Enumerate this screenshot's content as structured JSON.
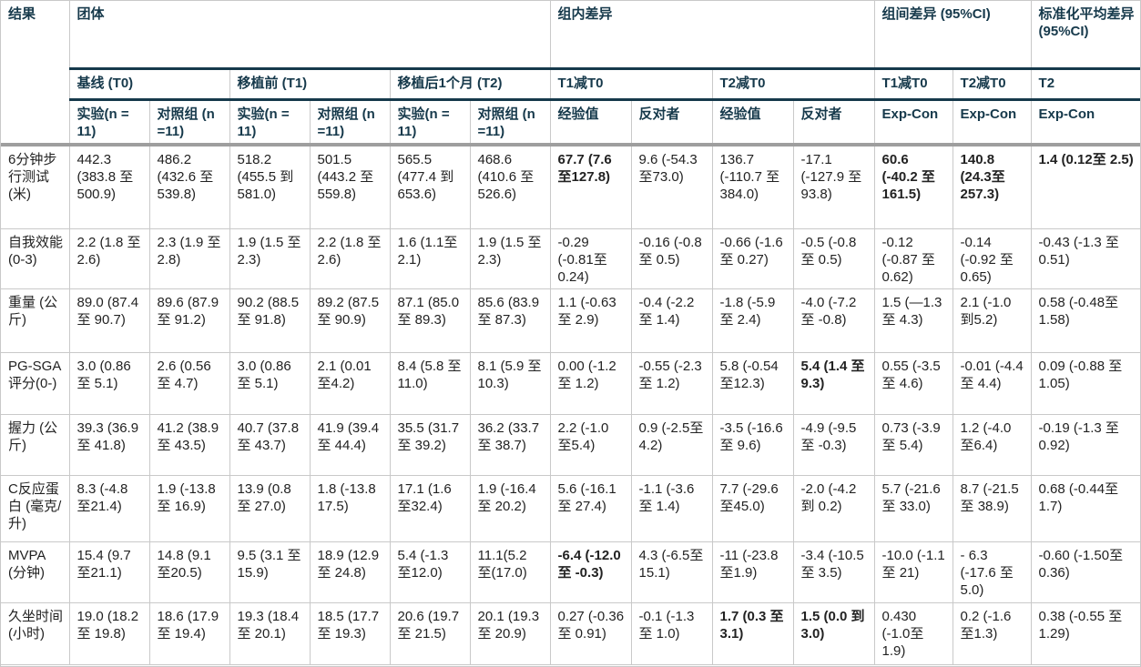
{
  "colors": {
    "header_text": "#16394b",
    "dark_rule": "#16394b",
    "gray_rule": "#9e9e9e",
    "cell_border": "#c9c9c9",
    "body_text": "#222222"
  },
  "header": {
    "corner": "结果",
    "row1": [
      {
        "label": "团体",
        "colspan": 6
      },
      {
        "label": "组内差异",
        "colspan": 4
      },
      {
        "label": "组间差异 (95%CI)",
        "colspan": 2
      },
      {
        "label": "标准化平均差异 (95%CI)",
        "colspan": 1
      }
    ],
    "row2": [
      {
        "label": "基线 (T0)",
        "colspan": 2
      },
      {
        "label": "移植前 (T1)",
        "colspan": 2
      },
      {
        "label": "移植后1个月 (T2)",
        "colspan": 2
      },
      {
        "label": "T1减T0",
        "colspan": 2
      },
      {
        "label": "T2减T0",
        "colspan": 2
      },
      {
        "label": "T1减T0",
        "colspan": 1
      },
      {
        "label": "T2减T0",
        "colspan": 1
      },
      {
        "label": "T2",
        "colspan": 1
      }
    ],
    "row3": [
      "实验(n = 11)",
      "对照组 (n =11)",
      "实验(n = 11)",
      "对照组 (n =11)",
      "实验(n = 11)",
      "对照组 (n =11)",
      "经验值",
      "反对者",
      "经验值",
      "反对者",
      "Exp-Con",
      "Exp-Con",
      "Exp-Con"
    ]
  },
  "rows": [
    {
      "outcome": "6分钟步行测试 (米)",
      "cells": [
        {
          "t": "442.3 (383.8 至 500.9)"
        },
        {
          "t": "486.2 (432.6 至 539.8)"
        },
        {
          "t": "518.2 (455.5 到 581.0)"
        },
        {
          "t": "501.5 (443.2 至 559.8)"
        },
        {
          "t": "565.5 (477.4 到 653.6)"
        },
        {
          "t": "468.6 (410.6 至 526.6)"
        },
        {
          "t": "67.7 (7.6 至127.8)",
          "b": true
        },
        {
          "t": "9.6 (-54.3 至73.0)"
        },
        {
          "t": "136.7 (-110.7 至 384.0)"
        },
        {
          "t": "-17.1 (-127.9 至93.8)"
        },
        {
          "t": "60.6 (-40.2 至161.5)",
          "b": true
        },
        {
          "t": "140.8 (24.3至 257.3)",
          "b": true
        },
        {
          "t": "1.4 (0.12至 2.5)",
          "b": true
        }
      ]
    },
    {
      "outcome": "自我效能 (0-3)",
      "cells": [
        {
          "t": "2.2 (1.8 至2.6)"
        },
        {
          "t": "2.3 (1.9 至2.8)"
        },
        {
          "t": "1.9 (1.5 至2.3)"
        },
        {
          "t": "2.2 (1.8 至2.6)"
        },
        {
          "t": "1.6 (1.1至 2.1)"
        },
        {
          "t": "1.9 (1.5 至2.3)"
        },
        {
          "t": "-0.29 (-0.81至 0.24)"
        },
        {
          "t": "-0.16 (-0.8至 0.5)"
        },
        {
          "t": "-0.66 (-1.6至 0.27)"
        },
        {
          "t": "-0.5 (-0.8 至 0.5)"
        },
        {
          "t": "-0.12 (-0.87 至0.62)"
        },
        {
          "t": "-0.14 (-0.92 至0.65)"
        },
        {
          "t": "-0.43 (-1.3 至0.51)"
        }
      ]
    },
    {
      "outcome": "重量 (公斤)",
      "cells": [
        {
          "t": "89.0 (87.4 至 90.7)"
        },
        {
          "t": "89.6 (87.9至 91.2)"
        },
        {
          "t": "90.2 (88.5至 91.8)"
        },
        {
          "t": "89.2 (87.5至 90.9)"
        },
        {
          "t": "87.1 (85.0 至 89.3)"
        },
        {
          "t": "85.6 (83.9至 87.3)"
        },
        {
          "t": "1.1 (-0.63至 2.9)"
        },
        {
          "t": "-0.4 (-2.2 至 1.4)"
        },
        {
          "t": "-1.8 (-5.9至 2.4)"
        },
        {
          "t": "-4.0 (-7.2至 -0.8)"
        },
        {
          "t": "1.5 (—1.3至 4.3)"
        },
        {
          "t": "2.1 (-1.0 到5.2)"
        },
        {
          "t": "0.58 (-0.48至 1.58)"
        }
      ]
    },
    {
      "outcome": "PG-SGA评分(0-)",
      "cells": [
        {
          "t": "3.0 (0.86至 5.1)"
        },
        {
          "t": "2.6 (0.56至 4.7)"
        },
        {
          "t": "3.0 (0.86至 5.1)"
        },
        {
          "t": "2.1 (0.01 至4.2)"
        },
        {
          "t": "8.4 (5.8 至11.0)"
        },
        {
          "t": "8.1 (5.9 至10.3)"
        },
        {
          "t": "0.00 (-1.2 至 1.2)"
        },
        {
          "t": "-0.55 (-2.3至 1.2)"
        },
        {
          "t": "5.8 (-0.54 至12.3)"
        },
        {
          "t": "5.4 (1.4 至9.3)",
          "b": true
        },
        {
          "t": "0.55 (-3.5至 4.6)"
        },
        {
          "t": "-0.01 (-4.4 至 4.4)"
        },
        {
          "t": "0.09 (-0.88 至 1.05)"
        }
      ]
    },
    {
      "outcome": "握力 (公斤)",
      "cells": [
        {
          "t": "39.3 (36.9至 41.8)"
        },
        {
          "t": "41.2 (38.9至 43.5)"
        },
        {
          "t": "40.7 (37.8至 43.7)"
        },
        {
          "t": "41.9 (39.4至 44.4)"
        },
        {
          "t": "35.5 (31.7至 39.2)"
        },
        {
          "t": "36.2 (33.7至 38.7)"
        },
        {
          "t": "2.2 (-1.0 至5.4)"
        },
        {
          "t": "0.9 (-2.5至 4.2)"
        },
        {
          "t": "-3.5 (-16.6至 9.6)"
        },
        {
          "t": "-4.9 (-9.5至 -0.3)"
        },
        {
          "t": "0.73 (-3.9至 5.4)"
        },
        {
          "t": "1.2 (-4.0 至6.4)"
        },
        {
          "t": "-0.19 (-1.3 至0.92)"
        }
      ]
    },
    {
      "outcome": "C反应蛋白 (毫克/升)",
      "cells": [
        {
          "t": "8.3 (-4.8 至21.4)"
        },
        {
          "t": "1.9 (-13.8至 16.9)"
        },
        {
          "t": "13.9 (0.8至 27.0)"
        },
        {
          "t": "1.8 (-13.8 17.5)"
        },
        {
          "t": "17.1 (1.6 至32.4)"
        },
        {
          "t": "1.9 (-16.4至 20.2)"
        },
        {
          "t": "5.6 (-16.1至 27.4)"
        },
        {
          "t": "-1.1 (-3.6至 1.4)"
        },
        {
          "t": "7.7 (-29.6 至45.0)"
        },
        {
          "t": "-2.0 (-4.2 到 0.2)"
        },
        {
          "t": "5.7 (-21.6至 33.0)"
        },
        {
          "t": "8.7 (-21.5至 38.9)"
        },
        {
          "t": "0.68 (-0.44至 1.7)"
        }
      ]
    },
    {
      "outcome": "MVPA (分钟)",
      "cells": [
        {
          "t": "15.4 (9.7 至21.1)"
        },
        {
          "t": "14.8 (9.1 至20.5)"
        },
        {
          "t": "9.5 (3.1 至15.9)"
        },
        {
          "t": "18.9 (12.9至 24.8)"
        },
        {
          "t": "5.4 (-1.3 至12.0)"
        },
        {
          "t": "11.1(5.2 至(17.0)"
        },
        {
          "t": "-6.4 (-12.0至 -0.3)",
          "b": true
        },
        {
          "t": "4.3 (-6.5至 15.1)"
        },
        {
          "t": "-11 (-23.8 至1.9)"
        },
        {
          "t": "-3.4 (-10.5至 3.5)"
        },
        {
          "t": "-10.0 (-1.1至 21)"
        },
        {
          "t": "- 6.3 (-17.6 至5.0)"
        },
        {
          "t": "-0.60 (-1.50至 0.36)"
        }
      ]
    },
    {
      "outcome": "久坐时间 (小时)",
      "cells": [
        {
          "t": "19.0 (18.2至 19.8)"
        },
        {
          "t": "18.6 (17.9至 19.4)"
        },
        {
          "t": "19.3 (18.4至 20.1)"
        },
        {
          "t": "18.5 (17.7至 19.3)"
        },
        {
          "t": "20.6 (19.7至 21.5)"
        },
        {
          "t": "20.1 (19.3至 20.9)"
        },
        {
          "t": "0.27 (-0.36至 0.91)"
        },
        {
          "t": "-0.1 (-1.3至 1.0)"
        },
        {
          "t": "1.7 (0.3 至3.1)",
          "b": true
        },
        {
          "t": "1.5 (0.0 到3.0)",
          "b": true
        },
        {
          "t": "0.430 (-1.0至 1.9)"
        },
        {
          "t": "0.2 (-1.6 至1.3)"
        },
        {
          "t": "0.38 (-0.55 至1.29)"
        }
      ]
    }
  ]
}
